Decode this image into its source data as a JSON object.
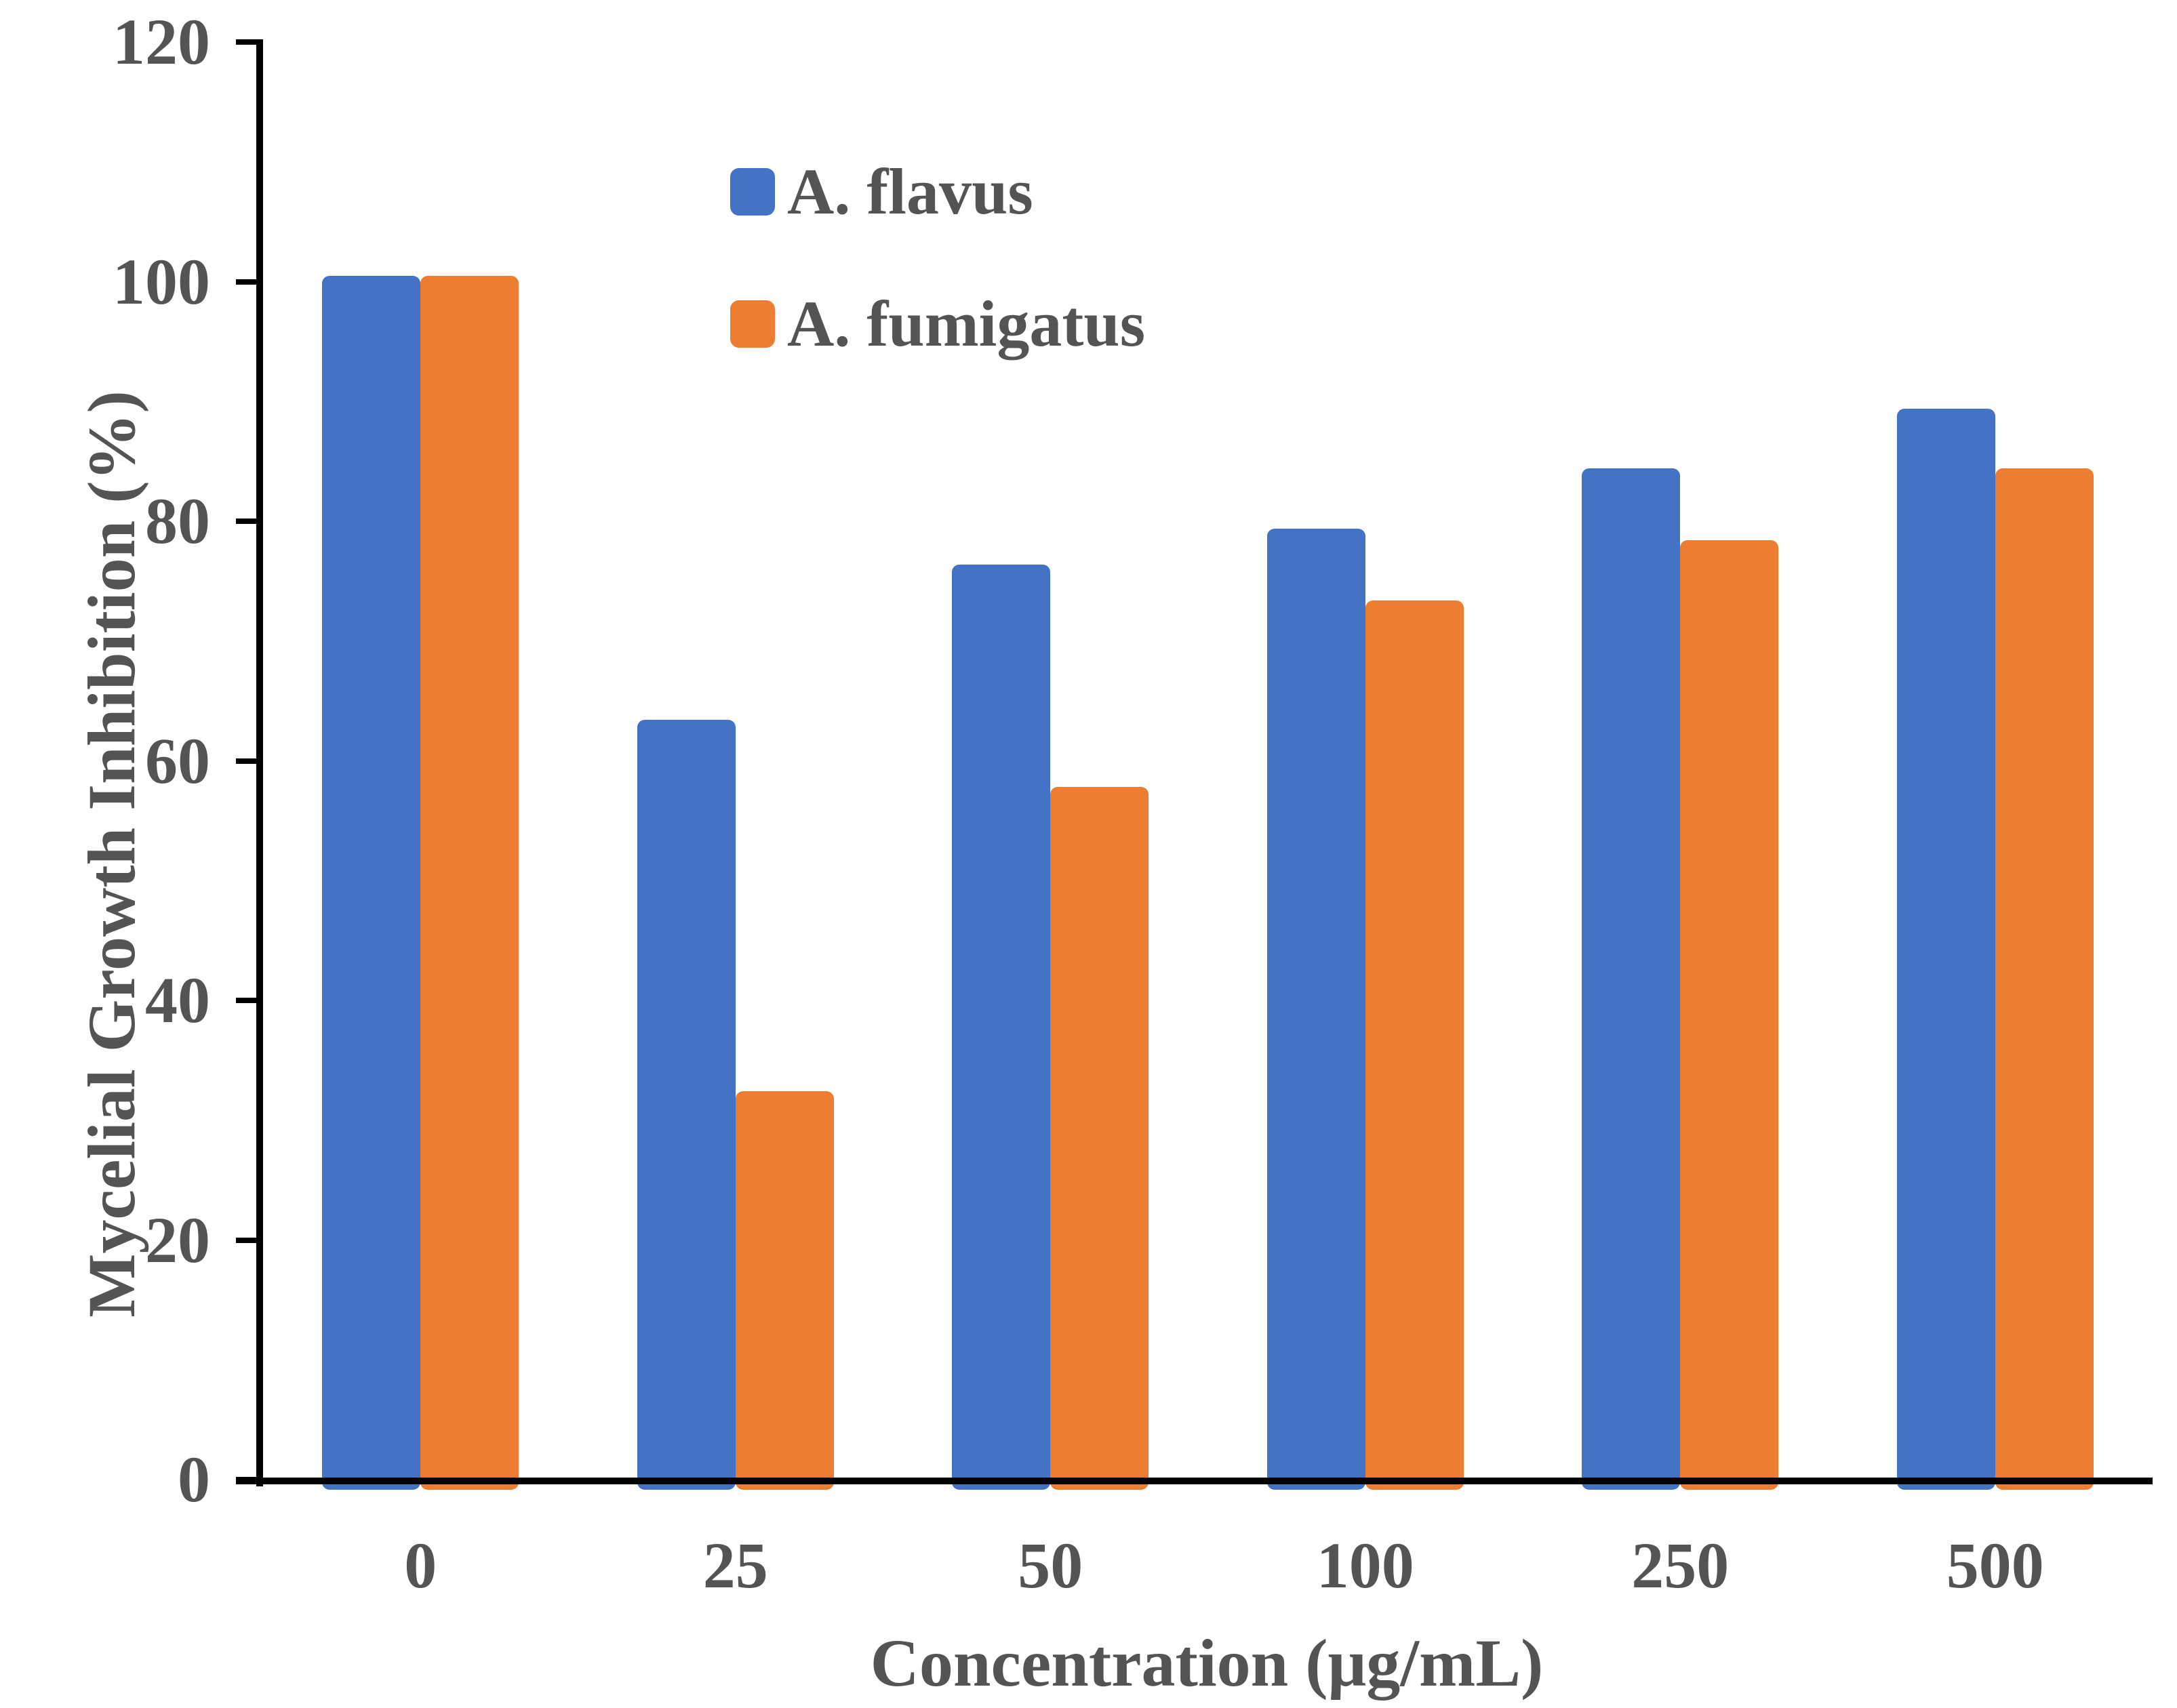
{
  "chart_data": {
    "type": "bar",
    "title": "",
    "categories": [
      "0",
      "25",
      "50",
      "100",
      "250",
      "500"
    ],
    "series": [
      {
        "name": "A. flavus",
        "color": "#4472C4",
        "values": [
          100.5,
          63.4,
          76.4,
          79.4,
          84.4,
          89.4
        ]
      },
      {
        "name": "A. fumigatus",
        "color": "#ED7D31",
        "values": [
          100.5,
          32.4,
          57.8,
          73.4,
          78.4,
          84.4
        ]
      }
    ],
    "xlabel": "Concentration (μg/mL)",
    "ylabel": "Mycelial Growth Inhibition (%)",
    "ylim": [
      0,
      120
    ],
    "yticks": [
      0,
      20,
      40,
      60,
      80,
      100,
      120
    ],
    "grid": false,
    "legend_position": "upper-left-of-plot",
    "axis_color": "#000000",
    "label_color": "#545454"
  }
}
